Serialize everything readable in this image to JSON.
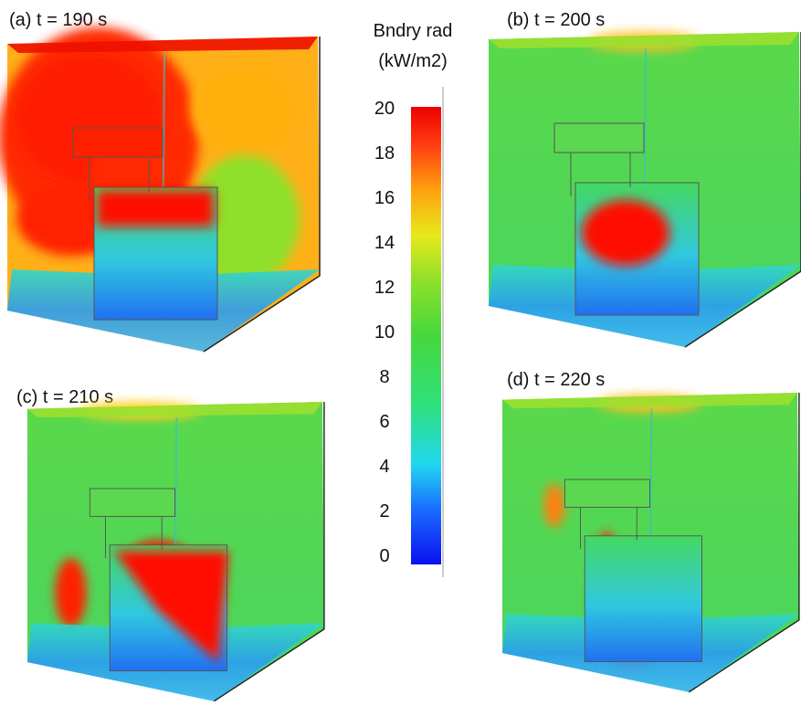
{
  "colorbar": {
    "title": [
      "Bndry rad",
      "(kW/m2)"
    ],
    "range": [
      0,
      20
    ],
    "ticks": [
      0,
      2,
      4,
      6,
      8,
      10,
      12,
      14,
      16,
      18,
      20
    ]
  },
  "panels": [
    {
      "label": "(a) t = 190 s"
    },
    {
      "label": "(b) t = 200 s"
    },
    {
      "label": "(c) t = 210 s"
    },
    {
      "label": "(d) t = 220 s"
    }
  ]
}
